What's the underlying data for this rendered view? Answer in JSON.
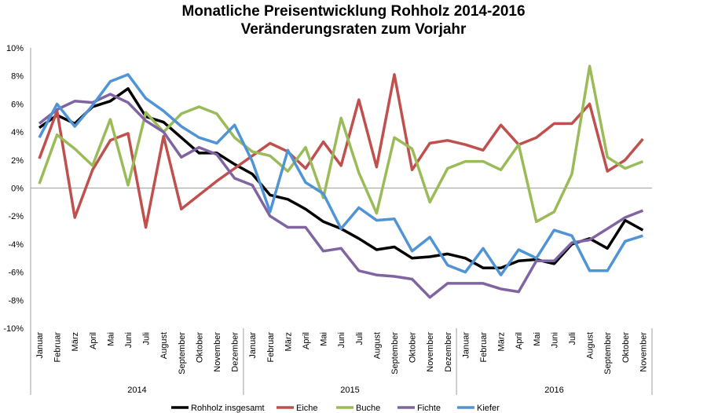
{
  "chart_data": {
    "type": "line",
    "title": "Monatliche Preisentwicklung Rohholz 2014-2016",
    "subtitle": "Veränderungsraten zum Vorjahr",
    "xlabel": "",
    "ylabel": "",
    "ylim": [
      -10,
      10
    ],
    "yticks": [
      "-10%",
      "-8%",
      "-6%",
      "-4%",
      "-2%",
      "0%",
      "2%",
      "4%",
      "6%",
      "8%",
      "10%"
    ],
    "grid": false,
    "legend_position": "bottom",
    "years": [
      {
        "label": "2014",
        "months": [
          "Januar",
          "Februar",
          "März",
          "April",
          "Mai",
          "Juni",
          "Juli",
          "August",
          "September",
          "Oktober",
          "November",
          "Dezember"
        ]
      },
      {
        "label": "2015",
        "months": [
          "Januar",
          "Februar",
          "März",
          "April",
          "Mai",
          "Juni",
          "Juli",
          "August",
          "September",
          "Oktober",
          "November",
          "Dezember"
        ]
      },
      {
        "label": "2016",
        "months": [
          "Januar",
          "Februar",
          "März",
          "April",
          "Mai",
          "Juni",
          "Juli",
          "August",
          "September",
          "Oktober",
          "November"
        ]
      }
    ],
    "series": [
      {
        "name": "Rohholz insgesamt",
        "color": "#000000",
        "values": [
          4.3,
          5.2,
          4.6,
          5.8,
          6.2,
          7.1,
          5.1,
          4.7,
          3.6,
          2.5,
          2.5,
          1.7,
          1.0,
          -0.5,
          -0.8,
          -1.5,
          -2.4,
          -2.9,
          -3.6,
          -4.4,
          -4.2,
          -5.0,
          -4.9,
          -4.7,
          -5.0,
          -5.7,
          -5.7,
          -5.2,
          -5.1,
          -5.4,
          -4.0,
          -3.6,
          -4.3,
          -2.3,
          -3.0
        ]
      },
      {
        "name": "Eiche",
        "color": "#c0504d",
        "values": [
          2.1,
          5.5,
          -2.1,
          1.3,
          3.4,
          3.9,
          -2.8,
          3.7,
          -1.5,
          -0.5,
          0.5,
          1.4,
          2.3,
          3.2,
          2.6,
          1.4,
          3.3,
          1.6,
          6.3,
          1.5,
          8.1,
          1.3,
          3.2,
          3.4,
          3.1,
          2.7,
          4.5,
          3.1,
          3.6,
          4.6,
          4.6,
          6.0,
          1.2,
          2.0,
          3.5
        ]
      },
      {
        "name": "Buche",
        "color": "#9bbb59",
        "values": [
          0.3,
          3.8,
          2.8,
          1.6,
          4.9,
          0.2,
          5.4,
          4.0,
          5.3,
          5.8,
          5.3,
          3.6,
          2.6,
          2.3,
          1.2,
          2.9,
          -0.7,
          5.0,
          1.1,
          -1.8,
          3.6,
          2.8,
          -1.0,
          1.4,
          1.9,
          1.9,
          1.3,
          3.1,
          -2.4,
          -1.7,
          1.0,
          8.7,
          2.2,
          1.4,
          1.9
        ]
      },
      {
        "name": "Fichte",
        "color": "#8064a2",
        "values": [
          4.6,
          5.6,
          6.2,
          6.1,
          6.7,
          6.1,
          4.8,
          4.0,
          2.2,
          2.9,
          2.4,
          0.7,
          0.2,
          -2.0,
          -2.8,
          -2.8,
          -4.5,
          -4.3,
          -5.9,
          -6.2,
          -6.3,
          -6.5,
          -7.8,
          -6.8,
          -6.8,
          -6.8,
          -7.2,
          -7.4,
          -5.2,
          -5.2,
          -3.9,
          -3.7,
          -2.9,
          -2.1,
          -1.6
        ]
      },
      {
        "name": "Kiefer",
        "color": "#4f94d4",
        "values": [
          3.6,
          6.0,
          4.4,
          5.9,
          7.6,
          8.1,
          6.4,
          5.5,
          4.4,
          3.6,
          3.2,
          4.5,
          1.9,
          -1.7,
          2.7,
          0.4,
          -0.4,
          -2.9,
          -1.4,
          -2.3,
          -2.2,
          -4.5,
          -3.5,
          -5.5,
          -6.0,
          -4.3,
          -6.2,
          -4.4,
          -5.0,
          -3.0,
          -3.4,
          -5.9,
          -5.9,
          -3.8,
          -3.4
        ]
      }
    ]
  }
}
